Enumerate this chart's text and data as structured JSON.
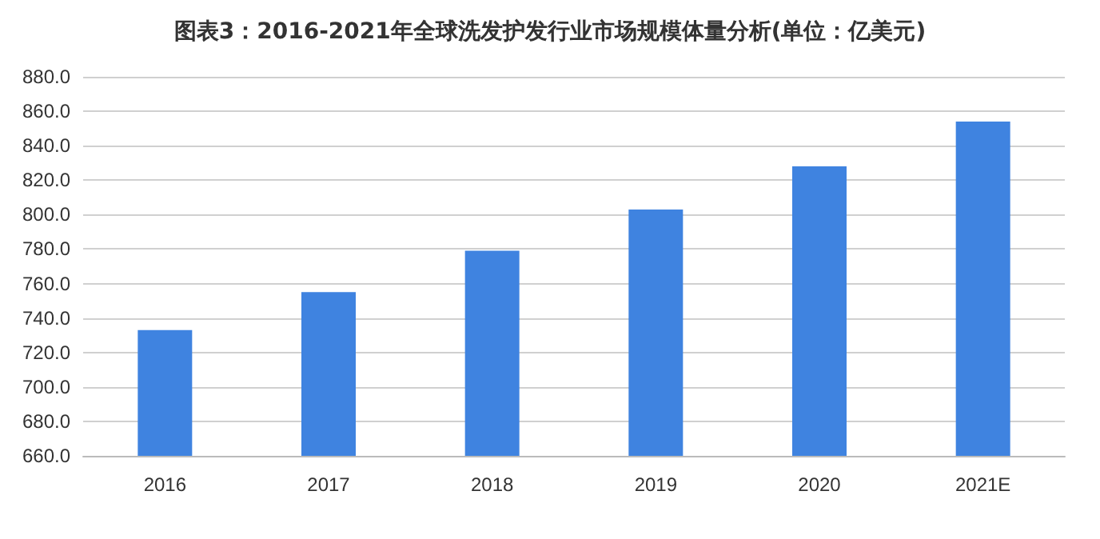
{
  "chart_data": {
    "type": "bar",
    "title": "图表3：2016-2021年全球洗发护发行业市场规模体量分析(单位：亿美元)",
    "categories": [
      "2016",
      "2017",
      "2018",
      "2019",
      "2020",
      "2021E"
    ],
    "values": [
      733,
      755,
      779,
      803,
      828,
      854
    ],
    "color": "#3f83e0",
    "ylim": [
      660,
      880
    ],
    "yticks": [
      {
        "value": 660,
        "label": "660.0"
      },
      {
        "value": 680,
        "label": "680.0"
      },
      {
        "value": 700,
        "label": "700.0"
      },
      {
        "value": 720,
        "label": "720.0"
      },
      {
        "value": 740,
        "label": "740.0"
      },
      {
        "value": 760,
        "label": "760.0"
      },
      {
        "value": 780,
        "label": "780.0"
      },
      {
        "value": 800,
        "label": "800.0"
      },
      {
        "value": 820,
        "label": "820.0"
      },
      {
        "value": 840,
        "label": "840.0"
      },
      {
        "value": 860,
        "label": "860.0"
      },
      {
        "value": 880,
        "label": "880.0"
      }
    ],
    "grid": "y"
  }
}
